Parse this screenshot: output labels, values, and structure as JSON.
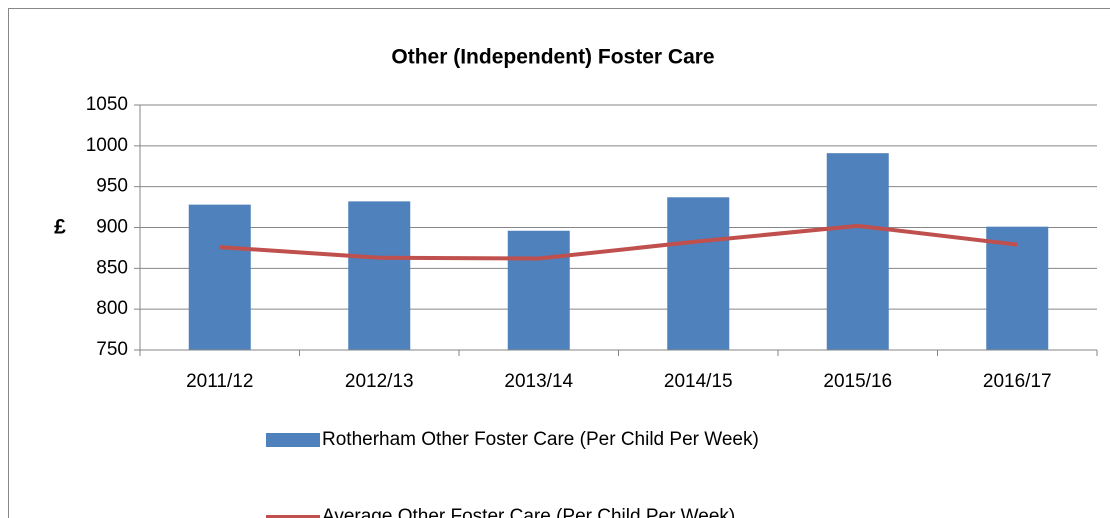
{
  "chart_data": {
    "type": "bar",
    "title": "Other (Independent) Foster Care",
    "y_label": "£",
    "categories": [
      "2011/12",
      "2012/13",
      "2013/14",
      "2014/15",
      "2015/16",
      "2016/17"
    ],
    "series": [
      {
        "name": "Rotherham Other Foster Care (Per Child Per Week)",
        "type": "bar",
        "color": "#4f81bd",
        "values": [
          928,
          932,
          896,
          937,
          991,
          901
        ]
      },
      {
        "name": "Average Other Foster Care (Per Child Per Week)",
        "type": "line",
        "color": "#c0504d",
        "values": [
          876,
          863,
          862,
          883,
          902,
          879
        ]
      }
    ],
    "ylim": [
      750,
      1050
    ],
    "yticks": [
      750,
      800,
      850,
      900,
      950,
      1000,
      1050
    ],
    "grid": true,
    "legend": "bottom"
  }
}
